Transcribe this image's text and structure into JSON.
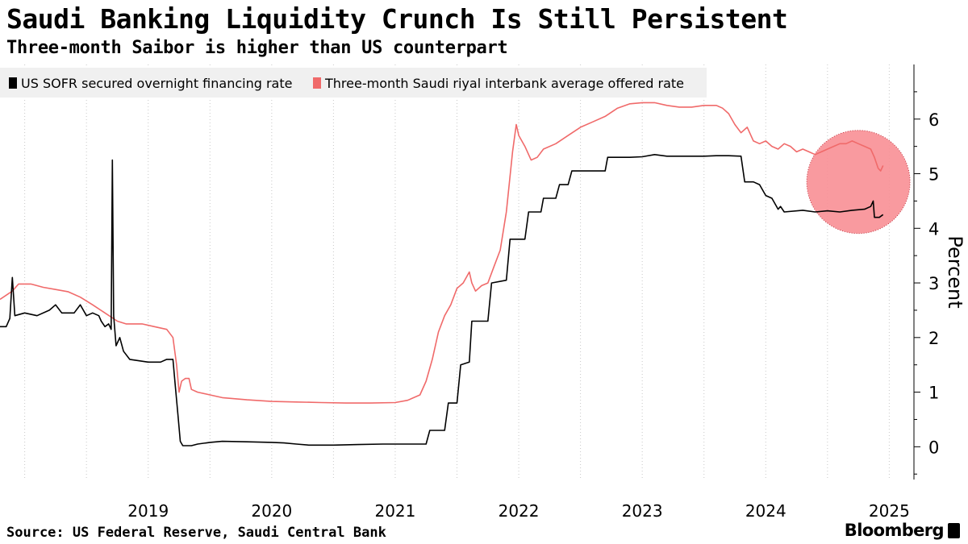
{
  "title": "Saudi Banking Liquidity Crunch Is Still Persistent",
  "subtitle": "Three-month Saibor is higher than US counterpart",
  "source": "Source: US Federal Reserve, Saudi Central Bank",
  "brand": "Bloomberg",
  "colors": {
    "sofr": "#000000",
    "saibor": "#f06a6a",
    "highlight": "#f88f95",
    "legend_bg": "#f0f0f0",
    "grid": "#c8c8c8"
  },
  "chart_data": {
    "type": "line",
    "title": "Saudi Banking Liquidity Crunch Is Still Persistent",
    "subtitle": "Three-month Saibor is higher than US counterpart",
    "xlabel": "",
    "ylabel": "Percent",
    "y_axis_side": "right",
    "ylim": [
      -0.6,
      7.0
    ],
    "yticks": [
      0,
      1,
      2,
      3,
      4,
      5,
      6
    ],
    "xlim": [
      2018.3,
      2025.7
    ],
    "xticks": [
      {
        "label": "2019",
        "value": 2019.0
      },
      {
        "label": "2020",
        "value": 2020.0
      },
      {
        "label": "2021",
        "value": 2021.0
      },
      {
        "label": "2022",
        "value": 2022.0
      },
      {
        "label": "2023",
        "value": 2023.0
      },
      {
        "label": "2024",
        "value": 2024.0
      },
      {
        "label": "2025",
        "value": 2025.0
      }
    ],
    "grid": "vertical dotted",
    "legend_position": "top-left",
    "highlight_circle": {
      "center_x": 2025.25,
      "center_y": 4.85,
      "note": "highlighted recent period"
    },
    "series": [
      {
        "name": "US SOFR secured overnight financing rate",
        "color": "#000000",
        "points": [
          [
            2018.3,
            2.2
          ],
          [
            2018.35,
            2.2
          ],
          [
            2018.38,
            2.35
          ],
          [
            2018.4,
            3.1
          ],
          [
            2018.42,
            2.4
          ],
          [
            2018.5,
            2.45
          ],
          [
            2018.6,
            2.4
          ],
          [
            2018.7,
            2.5
          ],
          [
            2018.75,
            2.6
          ],
          [
            2018.8,
            2.45
          ],
          [
            2018.9,
            2.45
          ],
          [
            2018.95,
            2.6
          ],
          [
            2019.0,
            2.4
          ],
          [
            2019.05,
            2.45
          ],
          [
            2019.1,
            2.4
          ],
          [
            2019.12,
            2.3
          ],
          [
            2019.15,
            2.2
          ],
          [
            2019.18,
            2.25
          ],
          [
            2019.2,
            2.15
          ],
          [
            2019.21,
            5.25
          ],
          [
            2019.22,
            2.4
          ],
          [
            2019.24,
            1.85
          ],
          [
            2019.27,
            2.0
          ],
          [
            2019.3,
            1.75
          ],
          [
            2019.35,
            1.6
          ],
          [
            2019.5,
            1.55
          ],
          [
            2019.6,
            1.55
          ],
          [
            2019.65,
            1.6
          ],
          [
            2019.7,
            1.6
          ],
          [
            2019.72,
            1.1
          ],
          [
            2019.74,
            0.6
          ],
          [
            2019.76,
            0.1
          ],
          [
            2019.78,
            0.02
          ],
          [
            2019.85,
            0.02
          ],
          [
            2019.9,
            0.05
          ],
          [
            2020.0,
            0.08
          ],
          [
            2020.1,
            0.1
          ],
          [
            2020.3,
            0.09
          ],
          [
            2020.5,
            0.08
          ],
          [
            2020.6,
            0.07
          ],
          [
            2020.7,
            0.05
          ],
          [
            2020.8,
            0.03
          ],
          [
            2020.9,
            0.03
          ],
          [
            2021.0,
            0.03
          ],
          [
            2021.2,
            0.04
          ],
          [
            2021.4,
            0.05
          ],
          [
            2021.6,
            0.05
          ],
          [
            2021.75,
            0.05
          ],
          [
            2021.78,
            0.3
          ],
          [
            2021.85,
            0.3
          ],
          [
            2021.9,
            0.3
          ],
          [
            2021.93,
            0.8
          ],
          [
            2022.0,
            0.8
          ],
          [
            2022.03,
            1.5
          ],
          [
            2022.1,
            1.55
          ],
          [
            2022.12,
            2.3
          ],
          [
            2022.25,
            2.3
          ],
          [
            2022.28,
            3.0
          ],
          [
            2022.4,
            3.05
          ],
          [
            2022.43,
            3.8
          ],
          [
            2022.55,
            3.8
          ],
          [
            2022.58,
            4.3
          ],
          [
            2022.68,
            4.3
          ],
          [
            2022.7,
            4.55
          ],
          [
            2022.8,
            4.55
          ],
          [
            2022.83,
            4.8
          ],
          [
            2022.9,
            4.8
          ],
          [
            2022.93,
            5.05
          ],
          [
            2023.0,
            5.05
          ],
          [
            2023.1,
            5.05
          ],
          [
            2023.2,
            5.05
          ],
          [
            2023.22,
            5.3
          ],
          [
            2023.4,
            5.3
          ],
          [
            2023.5,
            5.31
          ],
          [
            2023.6,
            5.35
          ],
          [
            2023.7,
            5.32
          ],
          [
            2023.8,
            5.32
          ],
          [
            2023.9,
            5.32
          ],
          [
            2024.0,
            5.32
          ],
          [
            2024.1,
            5.33
          ],
          [
            2024.2,
            5.33
          ],
          [
            2024.3,
            5.32
          ],
          [
            2024.33,
            4.85
          ],
          [
            2024.4,
            4.85
          ],
          [
            2024.45,
            4.8
          ],
          [
            2024.5,
            4.6
          ],
          [
            2024.55,
            4.55
          ],
          [
            2024.6,
            4.35
          ],
          [
            2024.62,
            4.4
          ],
          [
            2024.65,
            4.3
          ],
          [
            2024.8,
            4.33
          ],
          [
            2024.9,
            4.3
          ],
          [
            2025.0,
            4.32
          ],
          [
            2025.1,
            4.3
          ],
          [
            2025.2,
            4.33
          ],
          [
            2025.3,
            4.35
          ],
          [
            2025.35,
            4.4
          ],
          [
            2025.37,
            4.5
          ],
          [
            2025.38,
            4.2
          ],
          [
            2025.42,
            4.2
          ],
          [
            2025.45,
            4.25
          ]
        ]
      },
      {
        "name": "Three-month Saudi riyal interbank average offered rate",
        "color": "#f06a6a",
        "points": [
          [
            2018.3,
            2.7
          ],
          [
            2018.4,
            2.85
          ],
          [
            2018.45,
            2.98
          ],
          [
            2018.55,
            2.98
          ],
          [
            2018.65,
            2.92
          ],
          [
            2018.75,
            2.88
          ],
          [
            2018.85,
            2.84
          ],
          [
            2018.95,
            2.74
          ],
          [
            2019.05,
            2.6
          ],
          [
            2019.15,
            2.45
          ],
          [
            2019.25,
            2.3
          ],
          [
            2019.32,
            2.25
          ],
          [
            2019.45,
            2.25
          ],
          [
            2019.55,
            2.2
          ],
          [
            2019.65,
            2.15
          ],
          [
            2019.7,
            2.0
          ],
          [
            2019.73,
            1.5
          ],
          [
            2019.75,
            1.0
          ],
          [
            2019.77,
            1.2
          ],
          [
            2019.8,
            1.25
          ],
          [
            2019.83,
            1.25
          ],
          [
            2019.85,
            1.05
          ],
          [
            2019.9,
            1.0
          ],
          [
            2020.0,
            0.95
          ],
          [
            2020.1,
            0.9
          ],
          [
            2020.3,
            0.86
          ],
          [
            2020.5,
            0.83
          ],
          [
            2020.7,
            0.82
          ],
          [
            2020.9,
            0.81
          ],
          [
            2021.1,
            0.8
          ],
          [
            2021.3,
            0.8
          ],
          [
            2021.5,
            0.81
          ],
          [
            2021.6,
            0.85
          ],
          [
            2021.7,
            0.95
          ],
          [
            2021.75,
            1.2
          ],
          [
            2021.8,
            1.6
          ],
          [
            2021.85,
            2.1
          ],
          [
            2021.9,
            2.4
          ],
          [
            2021.95,
            2.6
          ],
          [
            2022.0,
            2.9
          ],
          [
            2022.05,
            3.0
          ],
          [
            2022.1,
            3.2
          ],
          [
            2022.12,
            3.0
          ],
          [
            2022.15,
            2.85
          ],
          [
            2022.2,
            2.95
          ],
          [
            2022.25,
            3.0
          ],
          [
            2022.3,
            3.3
          ],
          [
            2022.35,
            3.6
          ],
          [
            2022.4,
            4.3
          ],
          [
            2022.45,
            5.4
          ],
          [
            2022.48,
            5.9
          ],
          [
            2022.5,
            5.7
          ],
          [
            2022.55,
            5.5
          ],
          [
            2022.6,
            5.25
          ],
          [
            2022.65,
            5.3
          ],
          [
            2022.7,
            5.45
          ],
          [
            2022.8,
            5.55
          ],
          [
            2022.9,
            5.7
          ],
          [
            2023.0,
            5.85
          ],
          [
            2023.1,
            5.95
          ],
          [
            2023.2,
            6.05
          ],
          [
            2023.3,
            6.2
          ],
          [
            2023.4,
            6.28
          ],
          [
            2023.5,
            6.3
          ],
          [
            2023.6,
            6.3
          ],
          [
            2023.7,
            6.25
          ],
          [
            2023.8,
            6.22
          ],
          [
            2023.9,
            6.22
          ],
          [
            2024.0,
            6.25
          ],
          [
            2024.1,
            6.25
          ],
          [
            2024.15,
            6.2
          ],
          [
            2024.2,
            6.1
          ],
          [
            2024.25,
            5.9
          ],
          [
            2024.3,
            5.75
          ],
          [
            2024.35,
            5.85
          ],
          [
            2024.4,
            5.6
          ],
          [
            2024.45,
            5.55
          ],
          [
            2024.5,
            5.6
          ],
          [
            2024.55,
            5.5
          ],
          [
            2024.6,
            5.45
          ],
          [
            2024.65,
            5.55
          ],
          [
            2024.7,
            5.5
          ],
          [
            2024.75,
            5.4
          ],
          [
            2024.8,
            5.45
          ],
          [
            2024.85,
            5.4
          ],
          [
            2024.9,
            5.35
          ],
          [
            2024.95,
            5.4
          ],
          [
            2025.0,
            5.45
          ],
          [
            2025.05,
            5.5
          ],
          [
            2025.1,
            5.55
          ],
          [
            2025.15,
            5.55
          ],
          [
            2025.2,
            5.6
          ],
          [
            2025.25,
            5.55
          ],
          [
            2025.3,
            5.5
          ],
          [
            2025.35,
            5.45
          ],
          [
            2025.38,
            5.3
          ],
          [
            2025.41,
            5.1
          ],
          [
            2025.43,
            5.05
          ],
          [
            2025.45,
            5.15
          ]
        ]
      }
    ]
  }
}
